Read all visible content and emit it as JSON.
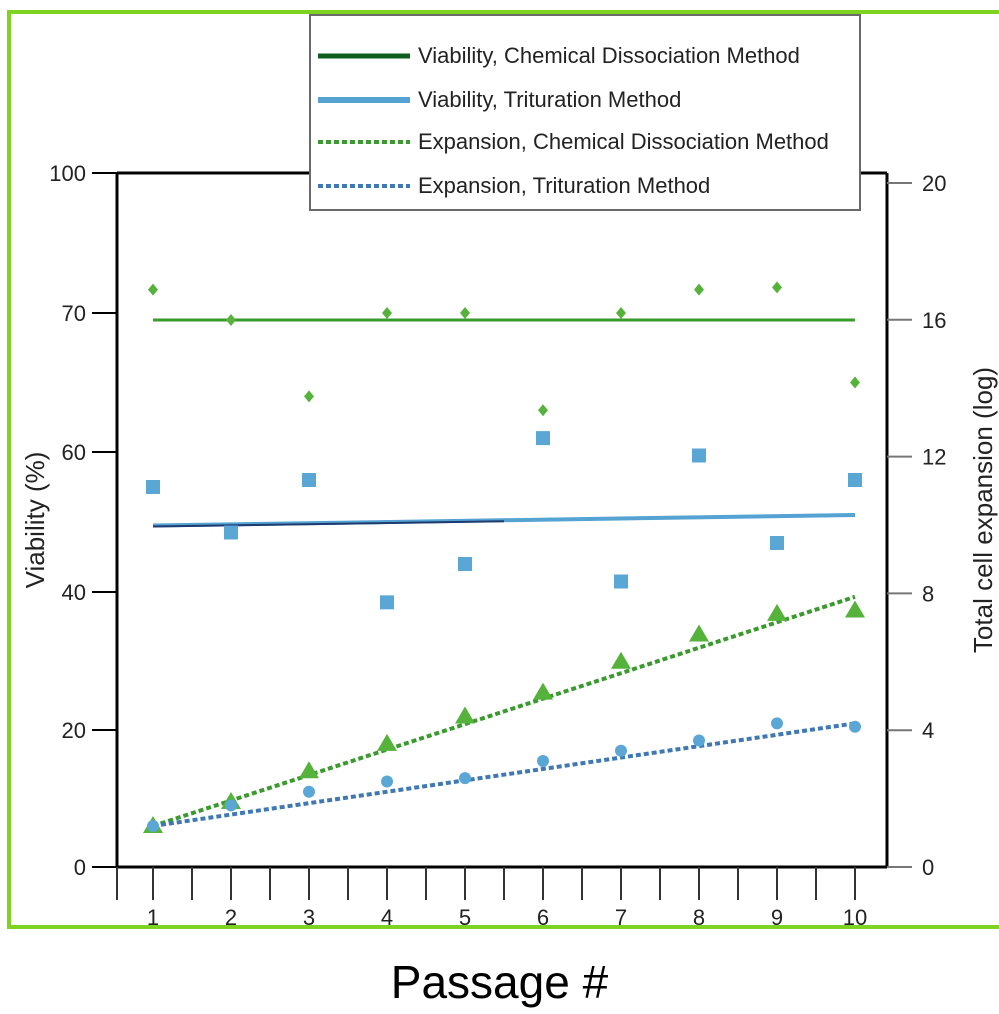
{
  "colors": {
    "frame_border": "#7ed321",
    "green_line": "#3a9a2e",
    "green_marker": "#55b33b",
    "green_dark_legend": "#0d5e1f",
    "blue_line": "#55a3d2",
    "blue_marker": "#5aa7d6",
    "blue_dark_line": "#1f3a6e"
  },
  "chart_data": {
    "type": "scatter",
    "title": "",
    "xlabel": "Passage #",
    "ylabel_left": "Viability (%)",
    "ylabel_right": "Total cell expansion (log)",
    "x": [
      1,
      2,
      3,
      4,
      5,
      6,
      7,
      8,
      9,
      10
    ],
    "x_ticks": [
      "1",
      "2",
      "3",
      "4",
      "5",
      "6",
      "7",
      "8",
      "9",
      "10"
    ],
    "y_left_ticks": [
      "0",
      "20",
      "40",
      "60",
      "70",
      "100"
    ],
    "y_right_ticks": [
      "0",
      "4",
      "8",
      "12",
      "16",
      "20"
    ],
    "y_right_lim": [
      0,
      20
    ],
    "grid": false,
    "legend_position": "top-right",
    "legend": [
      "Viability, Chemical Dissociation Method",
      "Viability, Trituration Method",
      "Expansion, Chemical Dissociation Method",
      "Expansion, Trituration Method"
    ],
    "series": [
      {
        "name": "Viability, Chemical Dissociation Method",
        "axis": "left",
        "marker": "diamond",
        "values": [
          75,
          69.5,
          64,
          70,
          70,
          63,
          70,
          75,
          75.5,
          65
        ],
        "trend": [
          69.5,
          69.5
        ]
      },
      {
        "name": "Viability, Trituration Method",
        "axis": "left",
        "marker": "square",
        "values": [
          55,
          48.5,
          56,
          38.5,
          44,
          61,
          41.5,
          59.5,
          47,
          56
        ],
        "trend": [
          49.5,
          51
        ]
      },
      {
        "name": "Expansion, Chemical Dissociation Method",
        "axis": "right",
        "marker": "triangle",
        "values": [
          1.2,
          1.9,
          2.8,
          3.6,
          4.4,
          5.1,
          6.0,
          6.8,
          7.4,
          7.5
        ],
        "trend": [
          1.2,
          7.9
        ]
      },
      {
        "name": "Expansion, Trituration Method",
        "axis": "right",
        "marker": "circle",
        "values": [
          1.2,
          1.8,
          2.2,
          2.5,
          2.6,
          3.1,
          3.4,
          3.7,
          4.2,
          4.1
        ],
        "trend": [
          1.2,
          4.2
        ]
      }
    ]
  }
}
